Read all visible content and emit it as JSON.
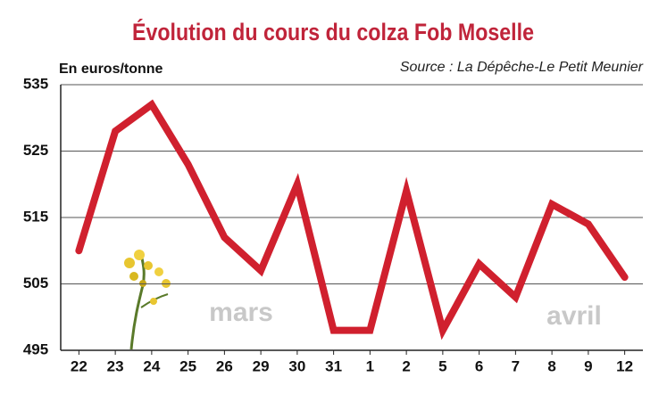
{
  "chart_data": {
    "type": "line",
    "title": "Évolution du cours du colza Fob Moselle",
    "y_label": "En euros/tonne",
    "source": "Source : La Dépêche-Le Petit Meunier",
    "annotations": [
      "mars",
      "avril"
    ],
    "categories": [
      "22",
      "23",
      "24",
      "25",
      "26",
      "29",
      "30",
      "31",
      "1",
      "2",
      "5",
      "6",
      "7",
      "8",
      "9",
      "12"
    ],
    "values": [
      510,
      528,
      532,
      523,
      512,
      507,
      520,
      498,
      498,
      519,
      498,
      508,
      503,
      517,
      514,
      506
    ],
    "color": "#d0202e",
    "ylim": [
      495,
      535
    ],
    "yticks": [
      495,
      505,
      515,
      525,
      535
    ],
    "grid": true
  }
}
